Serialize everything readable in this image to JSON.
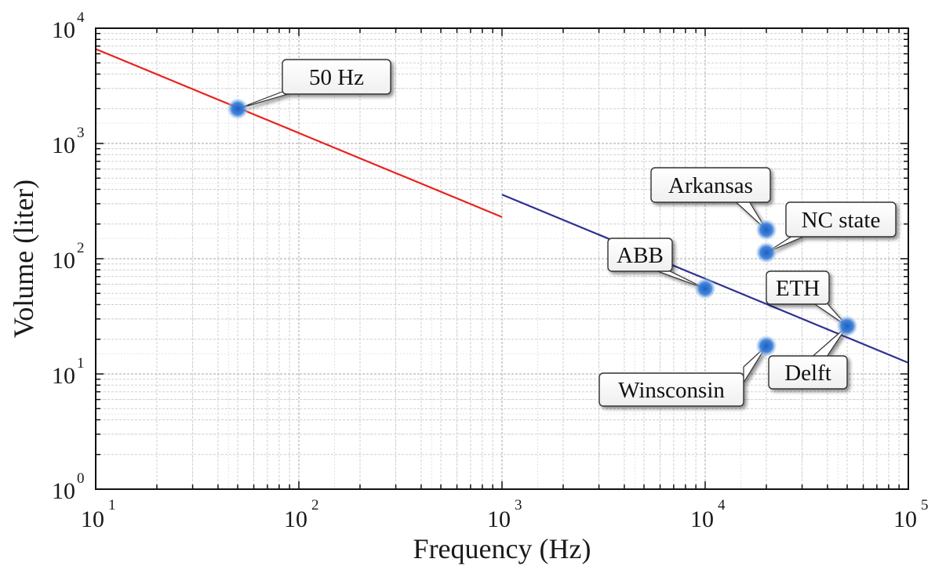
{
  "chart_data": {
    "type": "scatter",
    "title": "",
    "xlabel": "Frequency (Hz)",
    "ylabel": "Volume (liter)",
    "xscale": "log",
    "yscale": "log",
    "xlim": [
      10,
      100000
    ],
    "ylim": [
      1,
      10000
    ],
    "grid": true,
    "x_ticks": [
      {
        "base": "10",
        "exp": "1"
      },
      {
        "base": "10",
        "exp": "2"
      },
      {
        "base": "10",
        "exp": "3"
      },
      {
        "base": "10",
        "exp": "4"
      },
      {
        "base": "10",
        "exp": "5"
      }
    ],
    "y_ticks": [
      {
        "base": "10",
        "exp": "0"
      },
      {
        "base": "10",
        "exp": "1"
      },
      {
        "base": "10",
        "exp": "2"
      },
      {
        "base": "10",
        "exp": "3"
      },
      {
        "base": "10",
        "exp": "4"
      }
    ],
    "lines": [
      {
        "color": "#e8231e",
        "points": [
          [
            10,
            6600
          ],
          [
            1000,
            230
          ]
        ]
      },
      {
        "color": "#2e3192",
        "points": [
          [
            1000,
            360
          ],
          [
            100000,
            12.5
          ]
        ]
      }
    ],
    "points": [
      {
        "label": "50 Hz",
        "x": 50,
        "y": 2000
      },
      {
        "label": "Arkansas",
        "x": 20000,
        "y": 178
      },
      {
        "label": "NC state",
        "x": 20000,
        "y": 113
      },
      {
        "label": "ABB",
        "x": 10000,
        "y": 55
      },
      {
        "label": "ETH",
        "x": 50000,
        "y": 26
      },
      {
        "label": "Delft",
        "x": 50000,
        "y": 26
      },
      {
        "label": "Winsconsin",
        "x": 20000,
        "y": 17.5
      }
    ],
    "point_color": "#2f6fd0"
  }
}
